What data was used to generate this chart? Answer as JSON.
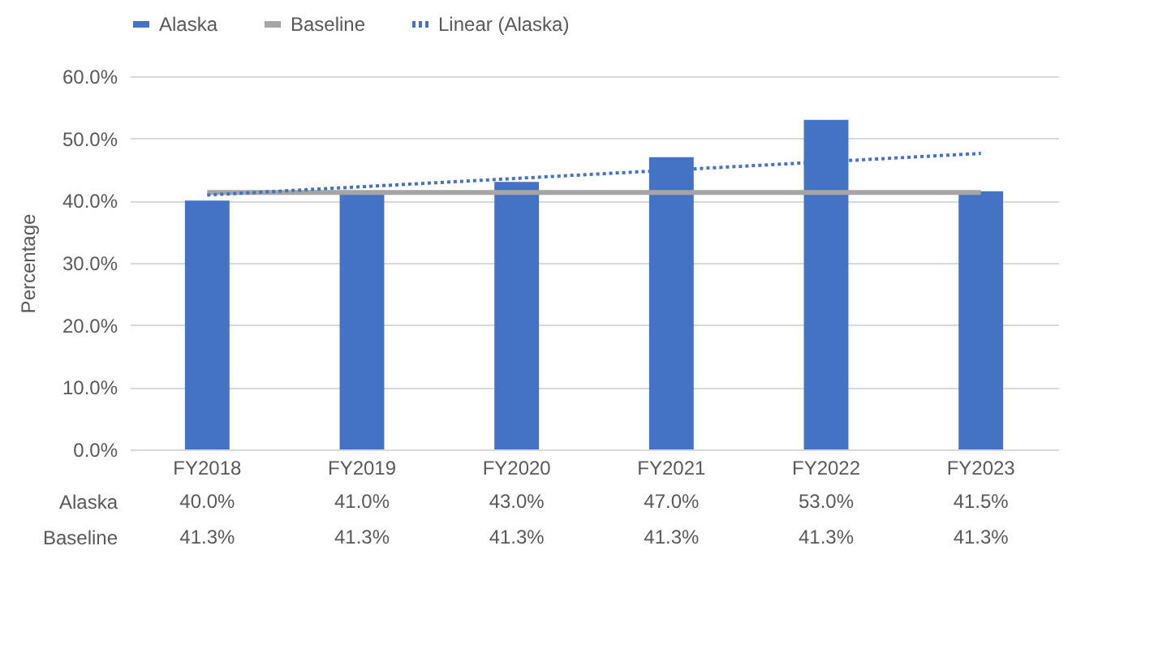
{
  "chart_data": {
    "type": "bar",
    "ylabel": "Percentage",
    "categories": [
      "FY2018",
      "FY2019",
      "FY2020",
      "FY2021",
      "FY2022",
      "FY2023"
    ],
    "series": [
      {
        "name": "Alaska",
        "color": "#4472c4",
        "values": [
          40.0,
          41.0,
          43.0,
          47.0,
          53.0,
          41.5
        ],
        "value_labels": [
          "40.0%",
          "41.0%",
          "43.0%",
          "47.0%",
          "53.0%",
          "41.5%"
        ]
      },
      {
        "name": "Baseline",
        "type": "line",
        "color": "#a5a5a5",
        "line_style": "solid",
        "values": [
          41.3,
          41.3,
          41.3,
          41.3,
          41.3,
          41.3
        ],
        "value_labels": [
          "41.3%",
          "41.3%",
          "41.3%",
          "41.3%",
          "41.3%",
          "41.3%"
        ]
      },
      {
        "name": "Linear (Alaska)",
        "type": "line",
        "color": "#4472c4",
        "line_style": "dotted",
        "x": [
          "FY2018",
          "FY2023"
        ],
        "values": [
          40.9,
          47.6
        ]
      }
    ],
    "ylim": [
      0,
      60
    ],
    "yticks": [
      {
        "value": 0,
        "label": "0.0%"
      },
      {
        "value": 10,
        "label": "10.0%"
      },
      {
        "value": 20,
        "label": "20.0%"
      },
      {
        "value": 30,
        "label": "30.0%"
      },
      {
        "value": 40,
        "label": "40.0%"
      },
      {
        "value": 50,
        "label": "50.0%"
      },
      {
        "value": 60,
        "label": "60.0%"
      }
    ],
    "grid": "y",
    "legend": "top"
  }
}
